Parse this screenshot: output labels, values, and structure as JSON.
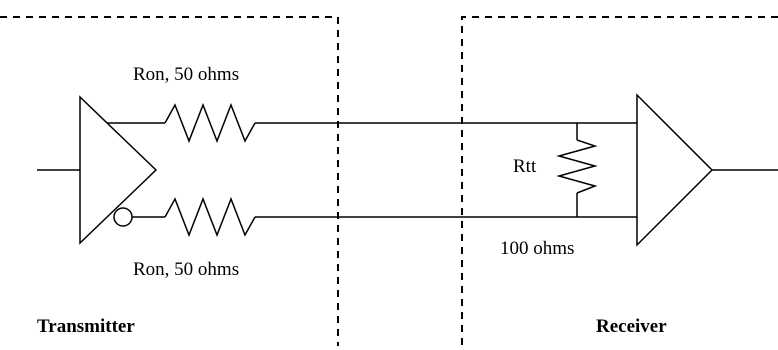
{
  "labels": {
    "ron_top": "Ron, 50 ohms",
    "ron_bottom": "Ron, 50 ohms",
    "rtt": "Rtt",
    "rtt_value": "100 ohms",
    "transmitter": "Transmitter",
    "receiver": "Receiver"
  },
  "colors": {
    "line": "#000000",
    "background": "#ffffff"
  }
}
